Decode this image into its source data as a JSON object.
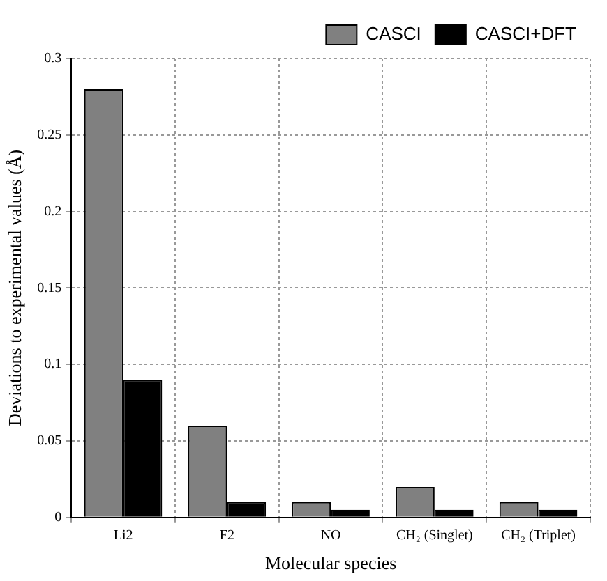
{
  "chart_data": {
    "type": "bar",
    "xlabel": "Molecular species",
    "ylabel": "Deviations to experimental values (Å)",
    "categories": [
      "Li2",
      "F2",
      "NO",
      "CH₂ (Singlet)",
      "CH₂ (Triplet)"
    ],
    "series": [
      {
        "name": "CASCI",
        "color": "#808080",
        "values": [
          0.28,
          0.06,
          0.01,
          0.02,
          0.01
        ]
      },
      {
        "name": "CASCI+DFT",
        "color": "#000000",
        "values": [
          0.09,
          0.01,
          0.005,
          0.005,
          0.005
        ]
      }
    ],
    "ylim": [
      0,
      0.3
    ],
    "yticks": [
      0,
      0.05,
      0.1,
      0.15,
      0.2,
      0.25,
      0.3
    ],
    "grid": true,
    "legend": "top right"
  }
}
